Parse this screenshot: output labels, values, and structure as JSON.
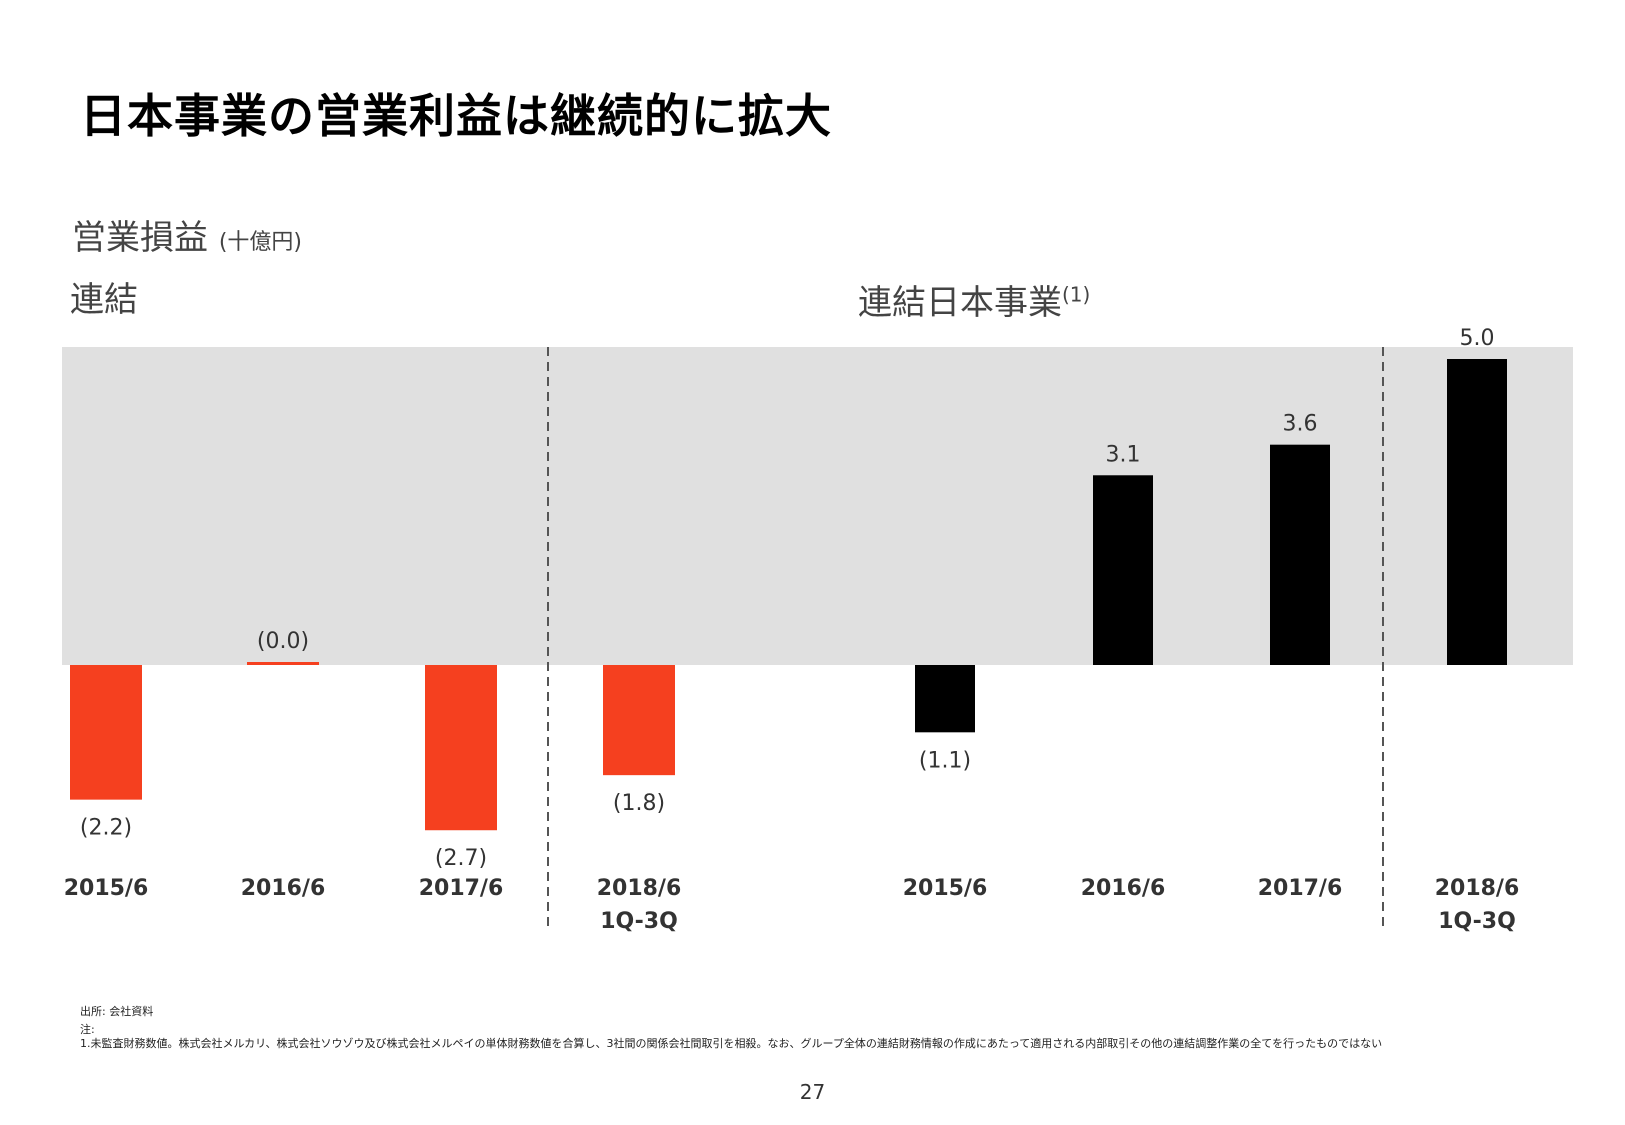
{
  "title": "日本事業の営業利益は継続的に拡大",
  "subtitle": {
    "main": "営業損益",
    "unit": "(十億円)"
  },
  "panels": {
    "left_title": "連結",
    "right_title": "連結日本事業",
    "right_title_note": "(1)"
  },
  "colors": {
    "negative_consolidated": "#f5401f",
    "japan": "#000000",
    "band": "#e0e0e0"
  },
  "chart_data": [
    {
      "type": "bar",
      "title": "連結",
      "categories": [
        "2015/6",
        "2016/6",
        "2017/6",
        "2018/6 1Q-3Q"
      ],
      "values": [
        -2.2,
        -0.0,
        -2.7,
        -1.8
      ],
      "data_labels": [
        "(2.2)",
        "(0.0)",
        "(2.7)",
        "(1.8)"
      ],
      "color": "#f5401f"
    },
    {
      "type": "bar",
      "title": "連結日本事業(1)",
      "categories": [
        "2015/6",
        "2016/6",
        "2017/6",
        "2018/6 1Q-3Q"
      ],
      "values": [
        -1.1,
        3.1,
        3.6,
        5.0
      ],
      "data_labels": [
        "(1.1)",
        "3.1",
        "3.6",
        "5.0"
      ],
      "color": "#000000"
    }
  ],
  "footer": {
    "source": "出所: 会社資料",
    "note_label": "注:",
    "note_1": "1.未監査財務数値。株式会社メルカリ、株式会社ソウゾウ及び株式会社メルペイの単体財務数値を合算し、3社間の関係会社間取引を相殺。なお、グループ全体の連結財務情報の作成にあたって適用される内部取引その他の連結調整作業の全てを行ったものではない"
  },
  "page_number": "27"
}
